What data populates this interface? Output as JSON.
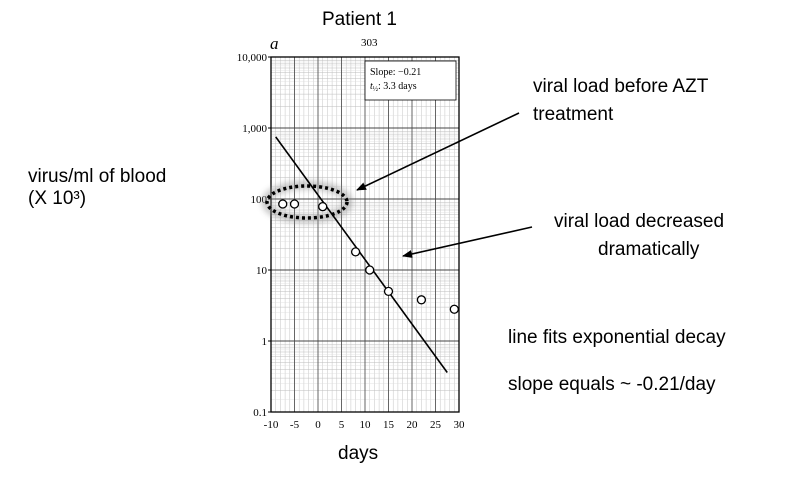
{
  "title": "Patient 1",
  "panel_label": "a",
  "panel_number": "303",
  "ylabel_lines": [
    "virus/ml of blood",
    "(X 10³)"
  ],
  "xlabel": "days",
  "slope_box": {
    "line1": "Slope: −0.21",
    "line2_prefix": "t",
    "line2_suffix": ": 3.3 days"
  },
  "annotations": {
    "before_azt_line1": "viral load before AZT",
    "before_azt_line2": "treatment",
    "decrease_line1": "viral load decreased",
    "decrease_line2": "dramatically",
    "fit": "line fits exponential decay",
    "slope": "slope  equals ~    -0.21/day"
  },
  "chart_data": {
    "type": "scatter",
    "title": "Patient 1",
    "xlabel": "days",
    "ylabel": "virus/ml of blood (X 10³)",
    "xlim": [
      -10,
      30
    ],
    "ylim": [
      0.1,
      10000
    ],
    "yscale": "log",
    "grid": true,
    "x_ticks": [
      -10,
      -5,
      0,
      5,
      10,
      15,
      20,
      25,
      30
    ],
    "x_tick_labels": [
      "-10",
      "-5",
      "0",
      "5",
      "10",
      "15",
      "20",
      "25",
      "30"
    ],
    "y_ticks": [
      0.1,
      1,
      10,
      100,
      1000,
      10000
    ],
    "y_tick_labels": [
      "0.1",
      "1",
      "10",
      "100",
      "1,000",
      "10,000"
    ],
    "points": [
      {
        "x": -7.5,
        "y": 85
      },
      {
        "x": -5,
        "y": 85
      },
      {
        "x": 1,
        "y": 78
      },
      {
        "x": 8,
        "y": 18
      },
      {
        "x": 11,
        "y": 10
      },
      {
        "x": 15,
        "y": 5
      },
      {
        "x": 22,
        "y": 3.8
      },
      {
        "x": 29,
        "y": 2.8
      }
    ],
    "fit_line": {
      "x": [
        -9,
        27.5
      ],
      "y": [
        750,
        0.36
      ]
    },
    "slope_label": "Slope: −0.21",
    "half_life_label": "3.3 days"
  }
}
